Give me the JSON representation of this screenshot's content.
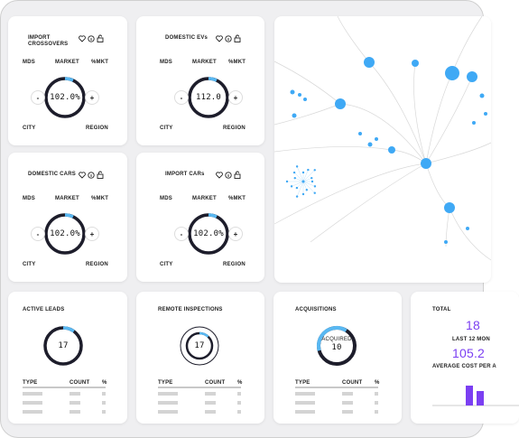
{
  "labels": {
    "metrics": [
      "MDS",
      "MARKET",
      "%MKT"
    ],
    "footer": [
      "CITY",
      "REGION"
    ],
    "controls": [
      "-",
      "+"
    ],
    "table_columns": [
      "TYPE",
      "COUNT",
      "%"
    ]
  },
  "gauge_cards": [
    {
      "title": "IMPORT CROSSOVERS",
      "value": "102.0%"
    },
    {
      "title": "DOMESTIC EVs",
      "value": "112.0"
    },
    {
      "title": "DOMESTIC CARS",
      "value": "102.0%"
    },
    {
      "title": "IMPORT CARs",
      "value": "102.0%"
    }
  ],
  "stat_cards": [
    {
      "title": "ACTIVE LEADS",
      "value": 17
    },
    {
      "title": "REMOTE INSPECTIONS",
      "value": 17
    },
    {
      "title": "ACQUISITIONS",
      "caption": "ACQUIRED",
      "value": 10
    }
  ],
  "total_card": {
    "title": "TOTAL",
    "count": 18,
    "count_caption": "LAST 12 MON",
    "average": 105.2,
    "average_caption": "AVERAGE COST PER A"
  }
}
